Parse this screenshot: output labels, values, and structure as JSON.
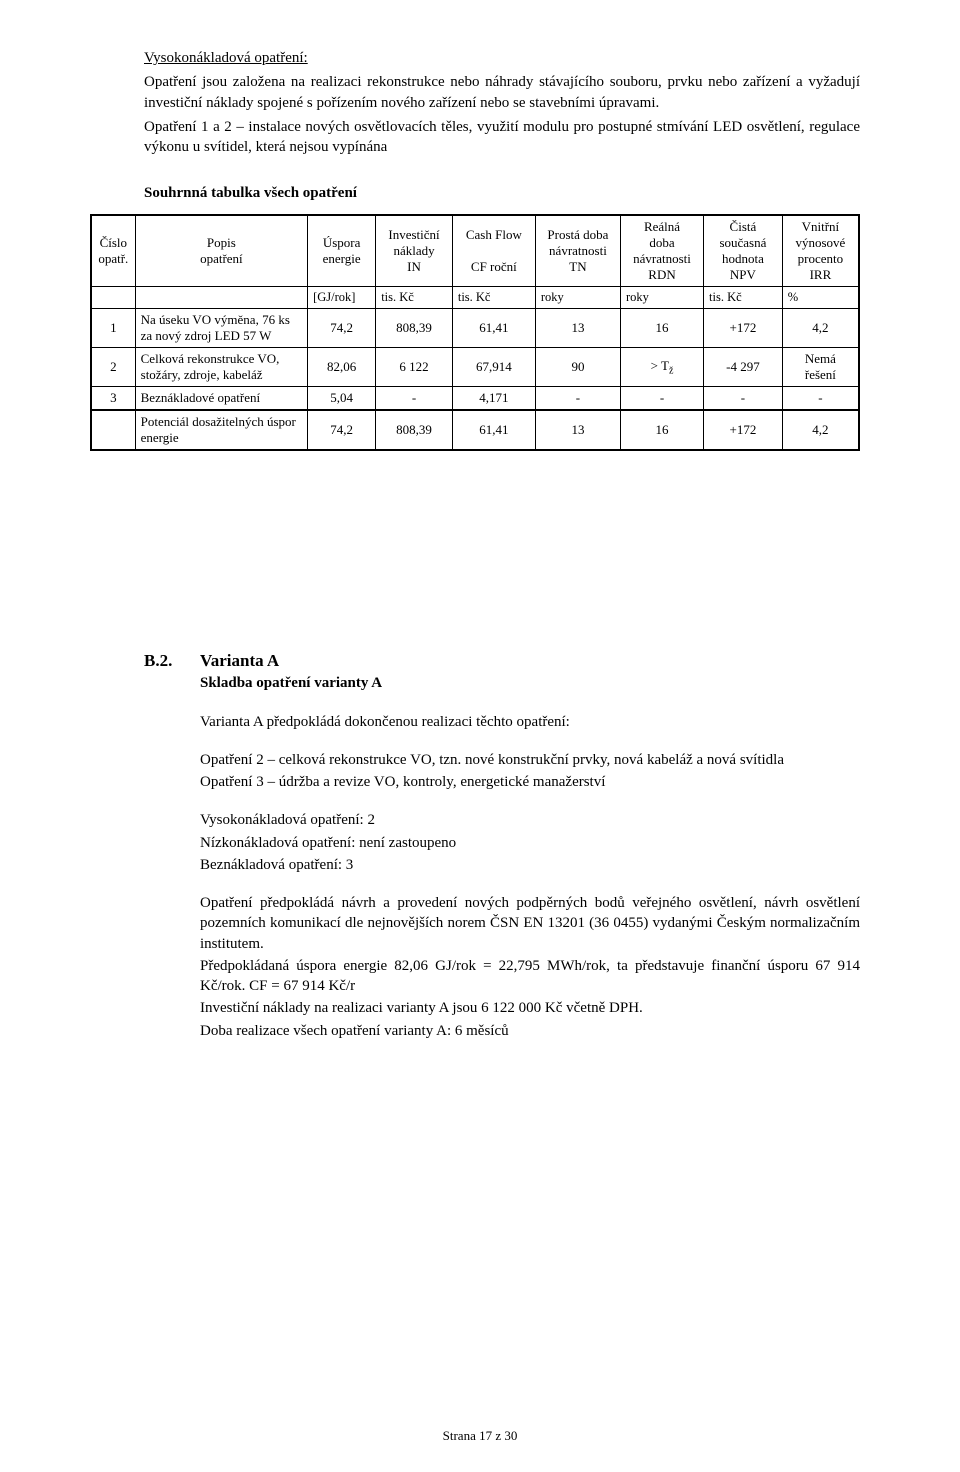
{
  "top": {
    "line1": "Vysokonákladová opatření:",
    "para1": "Opatření jsou založena na realizaci rekonstrukce nebo náhrady stávajícího souboru, prvku nebo zařízení a vyžadují investiční náklady spojené s pořízením nového zařízení nebo se stavebními úpravami.",
    "para2": "Opatření 1 a 2 – instalace nových osvětlovacích těles, využití modulu pro postupné stmívání LED osvětlení, regulace výkonu u svítidel, která nejsou vypínána"
  },
  "summary_title": "Souhrnná tabulka všech opatření",
  "table": {
    "headers": {
      "col0a": "Číslo",
      "col0b": "opatř.",
      "col1a": "Popis",
      "col1b": "opatření",
      "col2a": "Úspora",
      "col2b": "energie",
      "col3a": "Investiční",
      "col3b": "náklady",
      "col3c": "IN",
      "col4a": "Cash Flow",
      "col4c": "CF roční",
      "col5a": "Prostá doba",
      "col5b": "návratnosti",
      "col5c": "TN",
      "col6a": "Reálná",
      "col6b": "doba",
      "col6c": "návratnosti",
      "col6d": "RDN",
      "col7a": "Čistá",
      "col7b": "současná",
      "col7c": "hodnota",
      "col7d": "NPV",
      "col8a": "Vnitřní",
      "col8b": "výnosové",
      "col8c": "procento",
      "col8d": "IRR"
    },
    "units": {
      "u2": "[GJ/rok]",
      "u3": "tis. Kč",
      "u4": "tis. Kč",
      "u5": "roky",
      "u6": "roky",
      "u7": "tis. Kč",
      "u8": "%"
    },
    "rows": [
      {
        "no": "1",
        "desc": "Na úseku VO výměna, 76 ks za nový zdroj LED 57 W",
        "e": "74,2",
        "in": "808,39",
        "cf": "61,41",
        "tn": "13",
        "rdn": "16",
        "npv": "+172",
        "irr": "4,2"
      },
      {
        "no": "2",
        "desc": "Celková rekonstrukce VO, stožáry, zdroje, kabeláž",
        "e": "82,06",
        "in": "6 122",
        "cf": "67,914",
        "tn": "90",
        "rdn": "> T ž",
        "npv": "-4 297",
        "irr": "Nemá řešení"
      },
      {
        "no": "3",
        "desc": "Beznákladové opatření",
        "e": "5,04",
        "in": "-",
        "cf": "4,171",
        "tn": "-",
        "rdn": "-",
        "npv": "-",
        "irr": "-"
      },
      {
        "no": "",
        "desc": "Potenciál dosažitelných úspor energie",
        "e": "74,2",
        "in": "808,39",
        "cf": "61,41",
        "tn": "13",
        "rdn": "16",
        "npv": "+172",
        "irr": "4,2"
      }
    ]
  },
  "b2": {
    "label": "B.2.",
    "title": "Varianta A",
    "subtitle": "Skladba opatření varianty A",
    "p1": "Varianta A předpokládá dokončenou realizaci těchto opatření:",
    "p2": "Opatření 2 – celková rekonstrukce VO, tzn. nové konstrukční prvky, nová kabeláž a nová svítidla",
    "p3": "Opatření 3 – údržba a revize VO, kontroly, energetické manažerství",
    "p4": "Vysokonákladová opatření: 2",
    "p5": "Nízkonákladová opatření: není zastoupeno",
    "p6": "Beznákladová opatření: 3",
    "p7": "Opatření předpokládá návrh a provedení nových podpěrných bodů veřejného osvětlení, návrh osvětlení pozemních komunikací dle nejnovějších norem ČSN EN 13201 (36 0455) vydanými Českým normalizačním institutem.",
    "p8": "Předpokládaná úspora energie 82,06 GJ/rok = 22,795 MWh/rok, ta představuje finanční úsporu 67 914 Kč/rok. CF = 67 914 Kč/r",
    "p9": "Investiční náklady na realizaci varianty A jsou 6 122 000 Kč včetně DPH.",
    "p10": "Doba realizace všech opatření varianty A: 6 měsíců"
  },
  "footer": "Strana 17 z 30"
}
